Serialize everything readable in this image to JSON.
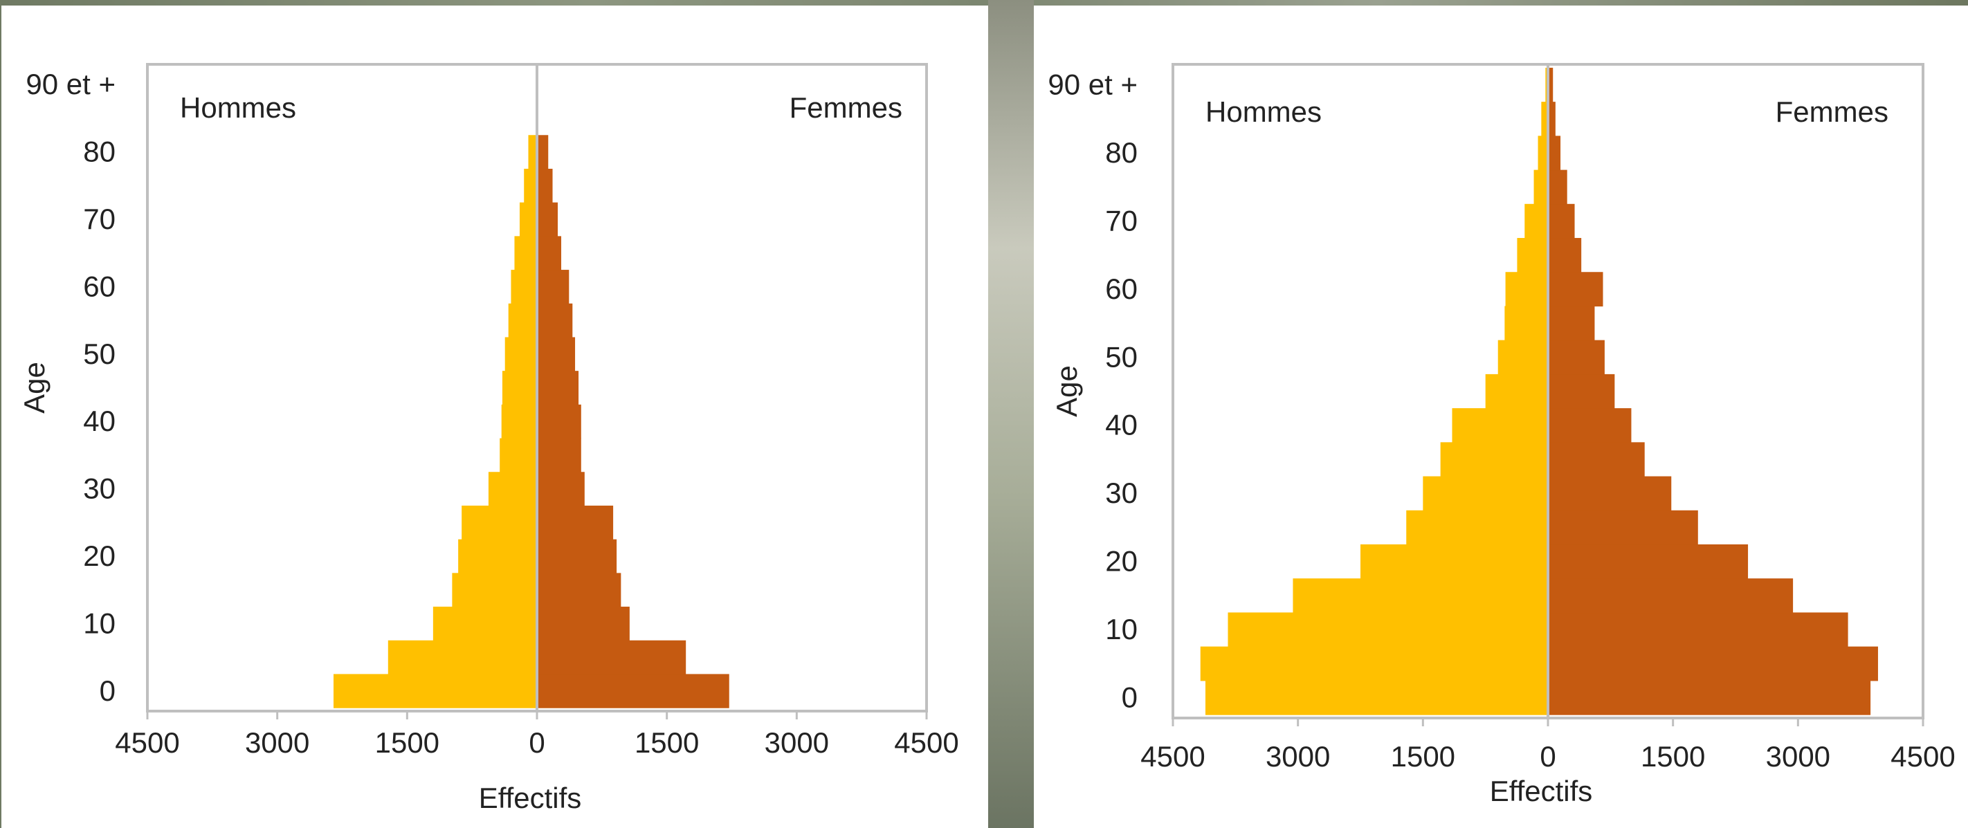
{
  "colors": {
    "men": "#FFC000",
    "women": "#C55A11",
    "axis": "#bfbfbf",
    "zero_line": "#bfbfbf"
  },
  "chart_data": [
    {
      "type": "bar",
      "orientation": "horizontal",
      "pyramid": true,
      "xlabel": "Effectifs",
      "ylabel": "Age",
      "xlim": [
        -4500,
        4500
      ],
      "ylim": [
        -3,
        93
      ],
      "x_tick_values": [
        -4500,
        -3000,
        -1500,
        0,
        1500,
        3000,
        4500
      ],
      "x_tick_labels": [
        "4500",
        "3000",
        "1500",
        "0",
        "1500",
        "3000",
        "4500"
      ],
      "y_tick_values": [
        0,
        10,
        20,
        30,
        40,
        50,
        60,
        70,
        80,
        90
      ],
      "y_tick_labels": [
        "0",
        "10",
        "20",
        "30",
        "40",
        "50",
        "60",
        "70",
        "80",
        "90 et +"
      ],
      "left_label": "Hommes",
      "right_label": "Femmes",
      "age_groups": [
        {
          "start": -2.5,
          "end": 2.5,
          "men": 2350,
          "women": 2220
        },
        {
          "start": 2.5,
          "end": 7.5,
          "men": 1720,
          "women": 1720
        },
        {
          "start": 7.5,
          "end": 12.5,
          "men": 1200,
          "women": 1070
        },
        {
          "start": 12.5,
          "end": 17.5,
          "men": 980,
          "women": 970
        },
        {
          "start": 17.5,
          "end": 22.5,
          "men": 910,
          "women": 920
        },
        {
          "start": 22.5,
          "end": 27.5,
          "men": 870,
          "women": 880
        },
        {
          "start": 27.5,
          "end": 32.5,
          "men": 560,
          "women": 550
        },
        {
          "start": 32.5,
          "end": 37.5,
          "men": 430,
          "women": 510
        },
        {
          "start": 37.5,
          "end": 42.5,
          "men": 410,
          "women": 510
        },
        {
          "start": 42.5,
          "end": 47.5,
          "men": 400,
          "women": 480
        },
        {
          "start": 47.5,
          "end": 52.5,
          "men": 370,
          "women": 440
        },
        {
          "start": 52.5,
          "end": 57.5,
          "men": 330,
          "women": 410
        },
        {
          "start": 57.5,
          "end": 62.5,
          "men": 300,
          "women": 370
        },
        {
          "start": 62.5,
          "end": 67.5,
          "men": 260,
          "women": 280
        },
        {
          "start": 67.5,
          "end": 72.5,
          "men": 200,
          "women": 240
        },
        {
          "start": 72.5,
          "end": 77.5,
          "men": 150,
          "women": 180
        },
        {
          "start": 77.5,
          "end": 82.5,
          "men": 100,
          "women": 130
        },
        {
          "start": 82.5,
          "end": 87.5,
          "men": 0,
          "women": 0
        },
        {
          "start": 87.5,
          "end": 92.5,
          "men": 0,
          "women": 0
        }
      ]
    },
    {
      "type": "bar",
      "orientation": "horizontal",
      "pyramid": true,
      "xlabel": "Effectifs",
      "ylabel": "Age",
      "xlim": [
        -4500,
        4500
      ],
      "ylim": [
        -3,
        93
      ],
      "x_tick_values": [
        -4500,
        -3000,
        -1500,
        0,
        1500,
        3000,
        4500
      ],
      "x_tick_labels": [
        "4500",
        "3000",
        "1500",
        "0",
        "1500",
        "3000",
        "4500"
      ],
      "y_tick_values": [
        0,
        10,
        20,
        30,
        40,
        50,
        60,
        70,
        80,
        90
      ],
      "y_tick_labels": [
        "0",
        "10",
        "20",
        "30",
        "40",
        "50",
        "60",
        "70",
        "80",
        "90 et +"
      ],
      "left_label": "Hommes",
      "right_label": "Femmes",
      "age_groups": [
        {
          "start": -2.5,
          "end": 2.5,
          "men": 4110,
          "women": 3870
        },
        {
          "start": 2.5,
          "end": 7.5,
          "men": 4170,
          "women": 3960
        },
        {
          "start": 7.5,
          "end": 12.5,
          "men": 3840,
          "women": 3600
        },
        {
          "start": 12.5,
          "end": 17.5,
          "men": 3060,
          "women": 2940
        },
        {
          "start": 17.5,
          "end": 22.5,
          "men": 2250,
          "women": 2400
        },
        {
          "start": 22.5,
          "end": 27.5,
          "men": 1700,
          "women": 1800
        },
        {
          "start": 27.5,
          "end": 32.5,
          "men": 1500,
          "women": 1480
        },
        {
          "start": 32.5,
          "end": 37.5,
          "men": 1290,
          "women": 1160
        },
        {
          "start": 37.5,
          "end": 42.5,
          "men": 1150,
          "women": 1000
        },
        {
          "start": 42.5,
          "end": 47.5,
          "men": 750,
          "women": 800
        },
        {
          "start": 47.5,
          "end": 52.5,
          "men": 600,
          "women": 680
        },
        {
          "start": 52.5,
          "end": 57.5,
          "men": 520,
          "women": 560
        },
        {
          "start": 57.5,
          "end": 62.5,
          "men": 510,
          "women": 660
        },
        {
          "start": 62.5,
          "end": 67.5,
          "men": 370,
          "women": 400
        },
        {
          "start": 67.5,
          "end": 72.5,
          "men": 280,
          "women": 320
        },
        {
          "start": 72.5,
          "end": 77.5,
          "men": 170,
          "women": 230
        },
        {
          "start": 77.5,
          "end": 82.5,
          "men": 120,
          "women": 150
        },
        {
          "start": 82.5,
          "end": 87.5,
          "men": 80,
          "women": 90
        },
        {
          "start": 87.5,
          "end": 92.5,
          "men": 30,
          "women": 60
        }
      ]
    }
  ]
}
